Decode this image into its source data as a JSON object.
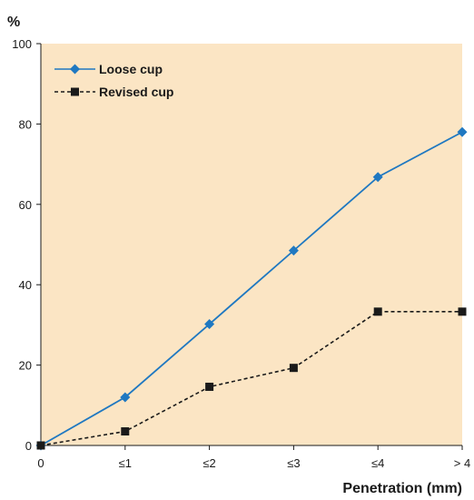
{
  "chart_data": {
    "type": "line",
    "categories": [
      "0",
      "≤1",
      "≤2",
      "≤3",
      "≤4",
      "> 4"
    ],
    "series": [
      {
        "name": "Loose cup",
        "values": [
          0,
          12,
          30.2,
          48.5,
          66.8,
          78
        ],
        "color": "#1f78c1",
        "marker": "diamond",
        "line": "solid"
      },
      {
        "name": "Revised cup",
        "values": [
          0,
          3.5,
          14.6,
          19.3,
          33.3,
          33.3
        ],
        "color": "#1a1a1a",
        "marker": "square",
        "line": "dashed"
      }
    ],
    "title": "",
    "xlabel": "Penetration (mm)",
    "ylabel": "%",
    "ylim": [
      0,
      100
    ],
    "yticks": [
      "0",
      "20",
      "40",
      "60",
      "80",
      "100"
    ],
    "grid": false,
    "legend": "top-left",
    "plot_background": "#fbe5c4"
  }
}
